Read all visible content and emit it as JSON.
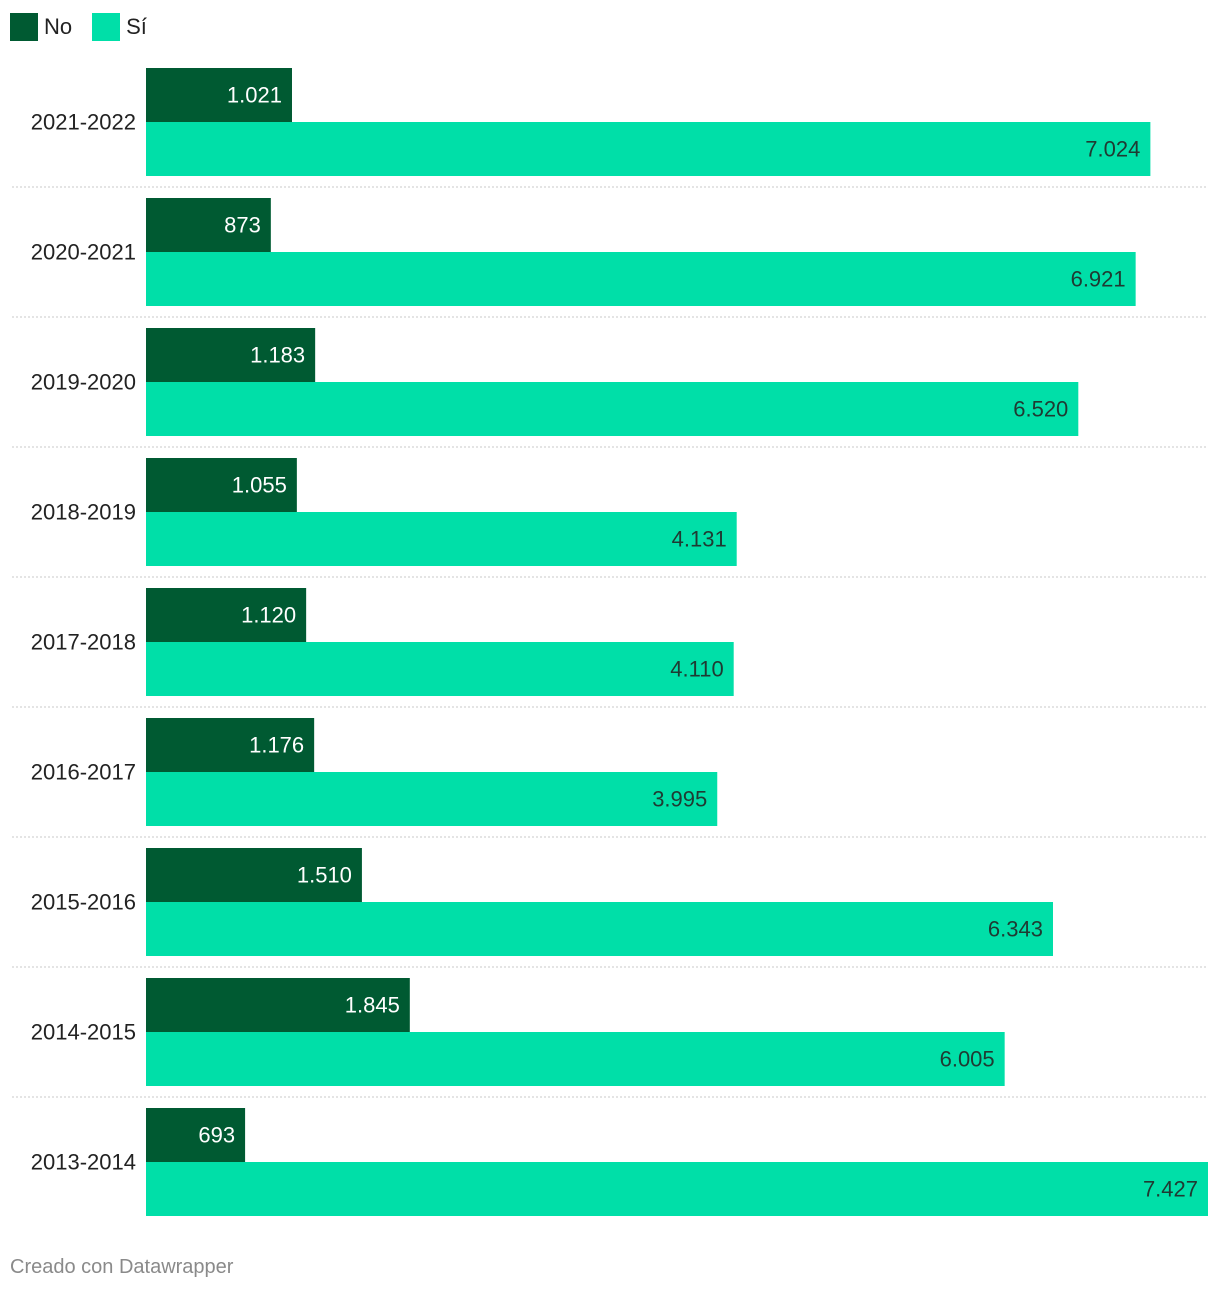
{
  "legend": [
    {
      "name": "No",
      "color": "#005a32"
    },
    {
      "name": "Sí",
      "color": "#00dfa8"
    }
  ],
  "chart_data": {
    "type": "bar",
    "orientation": "horizontal",
    "grouped": true,
    "title": "",
    "xlabel": "",
    "ylabel": "",
    "grid": false,
    "legend_position": "top-left",
    "xlim": [
      0,
      7427
    ],
    "categories": [
      "2021-2022",
      "2020-2021",
      "2019-2020",
      "2018-2019",
      "2017-2018",
      "2016-2017",
      "2015-2016",
      "2014-2015",
      "2013-2014"
    ],
    "series": [
      {
        "name": "No",
        "color": "#005a32",
        "values": [
          1021,
          873,
          1183,
          1055,
          1120,
          1176,
          1510,
          1845,
          693
        ],
        "labels": [
          "1.021",
          "873",
          "1.183",
          "1.055",
          "1.120",
          "1.176",
          "1.510",
          "1.845",
          "693"
        ]
      },
      {
        "name": "Sí",
        "color": "#00dfa8",
        "values": [
          7024,
          6921,
          6520,
          4131,
          4110,
          3995,
          6343,
          6005,
          7427
        ],
        "labels": [
          "7.024",
          "6.921",
          "6.520",
          "4.131",
          "4.110",
          "3.995",
          "6.343",
          "6.005",
          "7.427"
        ]
      }
    ]
  },
  "footer": {
    "credit": "Creado con Datawrapper"
  }
}
